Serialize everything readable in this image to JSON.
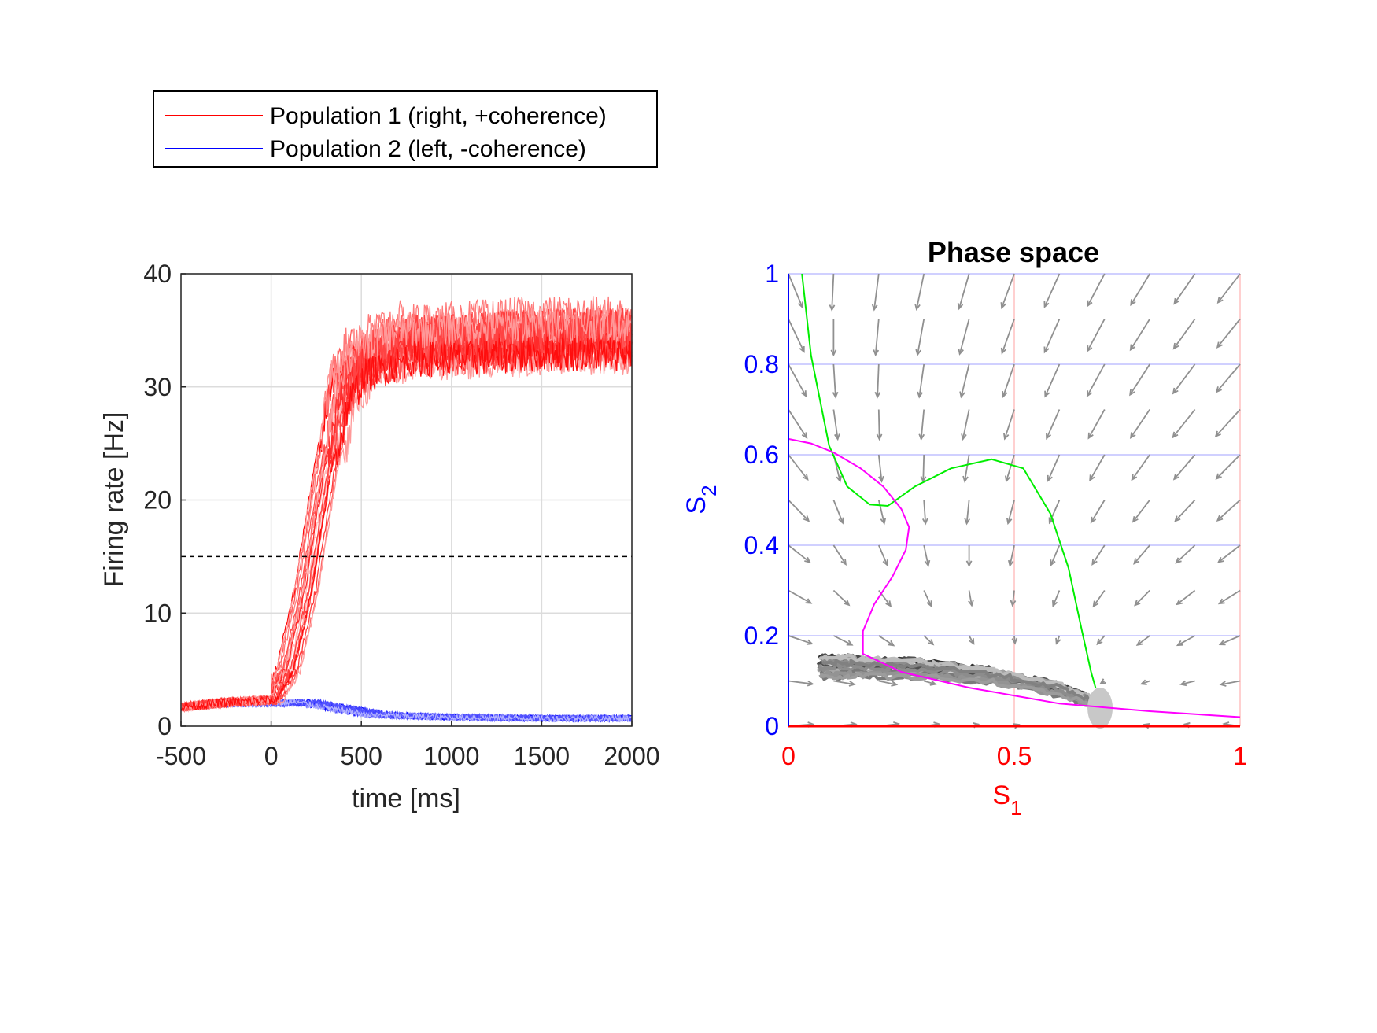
{
  "legend": {
    "entries": [
      {
        "label": "Population 1 (right, +coherence)",
        "color": "#ff0000"
      },
      {
        "label": "Population 2 (left, -coherence)",
        "color": "#0000ff"
      }
    ]
  },
  "chart_data": [
    {
      "type": "line",
      "title": "",
      "xlabel": "time [ms]",
      "ylabel": "Firing rate [Hz]",
      "xlim": [
        -500,
        2000
      ],
      "ylim": [
        0,
        40
      ],
      "xticks": [
        "-500",
        "0",
        "500",
        "1000",
        "1500",
        "2000"
      ],
      "yticks": [
        "0",
        "10",
        "20",
        "30",
        "40"
      ],
      "grid": true,
      "threshold": 15,
      "series": [
        {
          "name": "Population 1 (right, +coherence)",
          "color": "#ff0000",
          "trials": 20,
          "x": [
            -500,
            -250,
            0,
            100,
            200,
            300,
            400,
            500,
            750,
            1000,
            1500,
            2000
          ],
          "y": [
            1.7,
            2.1,
            2.3,
            5,
            12,
            22,
            30,
            32.5,
            34,
            34,
            34.5,
            34.5
          ]
        },
        {
          "name": "Population 2 (left, -coherence)",
          "color": "#0000ff",
          "trials": 20,
          "x": [
            -500,
            -250,
            0,
            200,
            400,
            600,
            1000,
            1500,
            2000
          ],
          "y": [
            1.7,
            2.0,
            2.0,
            2.1,
            1.5,
            1.0,
            0.8,
            0.7,
            0.7
          ]
        }
      ]
    },
    {
      "type": "scatter",
      "title": "Phase space",
      "xlabel": "S",
      "xlabel_sub": "1",
      "ylabel": "S",
      "ylabel_sub": "2",
      "xlim": [
        0,
        1
      ],
      "ylim": [
        0,
        1
      ],
      "xticks": [
        "0",
        "0.5",
        "1"
      ],
      "yticks": [
        "0",
        "0.2",
        "0.4",
        "0.6",
        "0.8",
        "1"
      ],
      "xcolor": "#ff0000",
      "ycolor": "#0000ff",
      "nullcline_s1": {
        "color": "#00ee00",
        "points": [
          [
            0.03,
            1.0
          ],
          [
            0.05,
            0.82
          ],
          [
            0.09,
            0.62
          ],
          [
            0.13,
            0.53
          ],
          [
            0.18,
            0.49
          ],
          [
            0.22,
            0.487
          ],
          [
            0.28,
            0.53
          ],
          [
            0.36,
            0.57
          ],
          [
            0.45,
            0.59
          ],
          [
            0.52,
            0.57
          ],
          [
            0.58,
            0.47
          ],
          [
            0.62,
            0.35
          ],
          [
            0.65,
            0.21
          ],
          [
            0.67,
            0.12
          ],
          [
            0.68,
            0.085
          ]
        ]
      },
      "nullcline_s2": {
        "color": "#ff00ff",
        "points": [
          [
            0.0,
            0.635
          ],
          [
            0.05,
            0.625
          ],
          [
            0.1,
            0.605
          ],
          [
            0.16,
            0.57
          ],
          [
            0.21,
            0.53
          ],
          [
            0.25,
            0.48
          ],
          [
            0.267,
            0.44
          ],
          [
            0.26,
            0.39
          ],
          [
            0.23,
            0.33
          ],
          [
            0.19,
            0.27
          ],
          [
            0.165,
            0.21
          ],
          [
            0.165,
            0.16
          ],
          [
            0.25,
            0.12
          ],
          [
            0.4,
            0.085
          ],
          [
            0.6,
            0.05
          ],
          [
            0.8,
            0.033
          ],
          [
            1.0,
            0.02
          ]
        ]
      },
      "trajectory_center": [
        [
          0.07,
          0.13
        ],
        [
          0.15,
          0.13
        ],
        [
          0.3,
          0.125
        ],
        [
          0.45,
          0.11
        ],
        [
          0.6,
          0.08
        ],
        [
          0.68,
          0.05
        ],
        [
          0.69,
          0.015
        ]
      ],
      "trajectory_trials": 20
    }
  ]
}
